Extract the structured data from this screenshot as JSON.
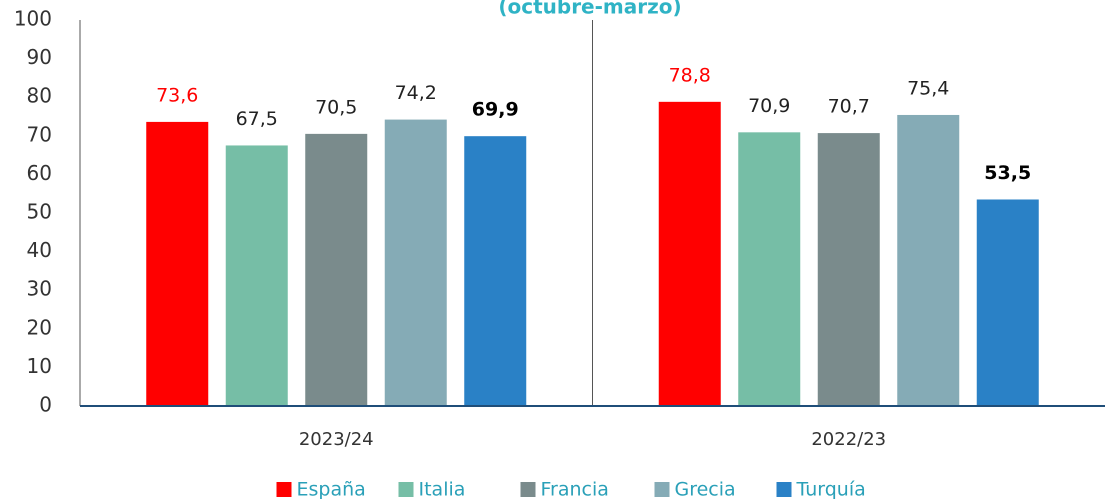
{
  "chart_data": {
    "type": "bar",
    "title": "(octubre-marzo)",
    "categories": [
      "2023/24",
      "2022/23"
    ],
    "series": [
      {
        "name": "España",
        "color": "#ff0000",
        "label_color": "#ff0000",
        "values": [
          73.6,
          78.8
        ],
        "value_labels": [
          "73,6",
          "78,8"
        ]
      },
      {
        "name": "Italia",
        "color": "#76bea6",
        "label_color": "#222222",
        "values": [
          67.5,
          70.9
        ],
        "value_labels": [
          "67,5",
          "70,9"
        ]
      },
      {
        "name": "Francia",
        "color": "#7a8b8c",
        "label_color": "#222222",
        "values": [
          70.5,
          70.7
        ],
        "value_labels": [
          "70,5",
          "70,7"
        ]
      },
      {
        "name": "Grecia",
        "color": "#85abb6",
        "label_color": "#222222",
        "values": [
          74.2,
          75.4
        ],
        "value_labels": [
          "74,2",
          "75,4"
        ]
      },
      {
        "name": "Turquía",
        "color": "#2a81c6",
        "label_color": "#000000",
        "label_weight": "bold",
        "values": [
          69.9,
          53.5
        ],
        "value_labels": [
          "69,9",
          "53,5"
        ]
      }
    ],
    "ylim": [
      0,
      100
    ],
    "yticks": [
      0,
      10,
      20,
      30,
      40,
      50,
      60,
      70,
      80,
      90,
      100
    ],
    "grid": false,
    "legend": "bottom"
  }
}
